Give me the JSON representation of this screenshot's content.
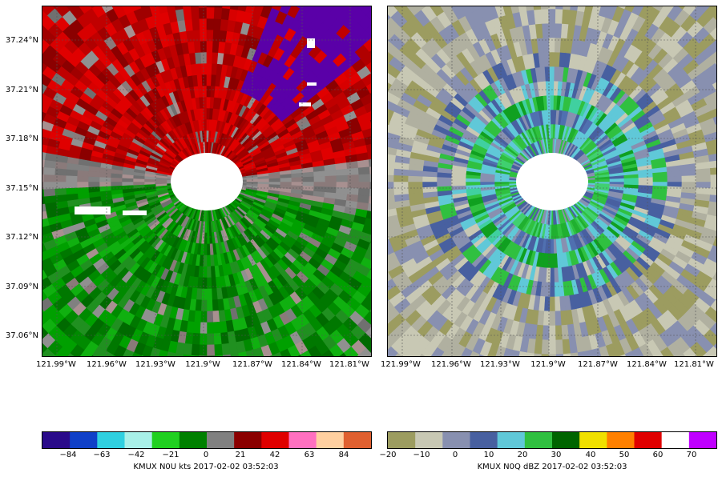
{
  "left_panel": {
    "y_ticks": [
      "37.24°N",
      "37.21°N",
      "37.18°N",
      "37.15°N",
      "37.12°N",
      "37.09°N",
      "37.06°N"
    ],
    "x_ticks": [
      "121.99°W",
      "121.96°W",
      "121.93°W",
      "121.9°W",
      "121.87°W",
      "121.84°W",
      "121.81°W"
    ],
    "field": "velocity"
  },
  "right_panel": {
    "x_ticks": [
      "121.99°W",
      "121.96°W",
      "121.93°W",
      "121.9°W",
      "121.87°W",
      "121.84°W",
      "121.81°W"
    ],
    "field": "reflectivity"
  },
  "left_colorbar": {
    "title": "KMUX N0U kts 2017-02-02 03:52:03",
    "ticks": [
      "−84",
      "−63",
      "−42",
      "−21",
      "0",
      "21",
      "42",
      "63",
      "84"
    ],
    "colors": [
      "#2a0a8a",
      "#1040c8",
      "#30d0e0",
      "#a8f0e8",
      "#20d020",
      "#008000",
      "#808080",
      "#8b0000",
      "#e00000",
      "#ff70c0",
      "#ffd0a0",
      "#e06030"
    ]
  },
  "right_colorbar": {
    "title": "KMUX N0Q dBZ 2017-02-02 03:52:03",
    "ticks": [
      "−20",
      "−10",
      "0",
      "10",
      "20",
      "30",
      "40",
      "50",
      "60",
      "70"
    ],
    "colors": [
      "#9c9c60",
      "#c8c8b4",
      "#8890b0",
      "#4860a0",
      "#60c8d8",
      "#30c040",
      "#006400",
      "#f0e000",
      "#ff8000",
      "#e00000",
      "#ffffff",
      "#c000ff"
    ]
  }
}
